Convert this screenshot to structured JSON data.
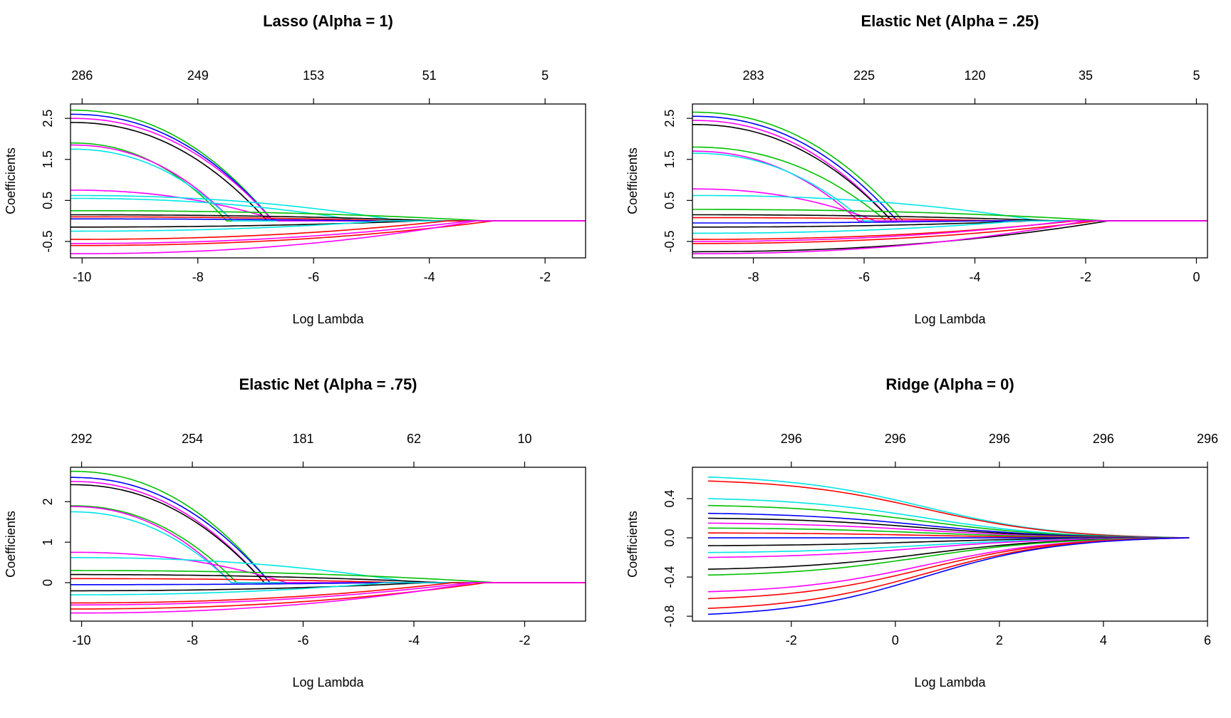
{
  "chart_data": [
    {
      "type": "line",
      "title": "Lasso (Alpha = 1)",
      "xlabel": "Log Lambda",
      "ylabel": "Coefficients",
      "xlim": [
        -10.2,
        -1.3
      ],
      "ylim": [
        -0.9,
        2.85
      ],
      "x_ticks": [
        "-10",
        "-8",
        "-6",
        "-4",
        "-2"
      ],
      "y_ticks": [
        "-0.5",
        "0.5",
        "1.5",
        "2.5"
      ],
      "top_ticks_x": [
        -10,
        -8,
        -6,
        -4,
        -2
      ],
      "top_ticks": [
        "286",
        "249",
        "153",
        "51",
        "5"
      ],
      "grid": false,
      "legend": "none",
      "x_start": -10.2,
      "x_end": -1.3,
      "series": [
        {
          "color": "#00c000",
          "start": 2.7,
          "zero_at": -6.7,
          "exit_x": -6.7,
          "exit_y": 0.6
        },
        {
          "color": "#0000ff",
          "start": 2.6,
          "zero_at": -6.7,
          "exit_x": -6.9,
          "exit_y": 0.5
        },
        {
          "color": "#ff00ff",
          "start": 2.5,
          "zero_at": -6.7,
          "exit_x": -7.0,
          "exit_y": 0.5
        },
        {
          "color": "#000000",
          "start": 2.4,
          "zero_at": -6.8
        },
        {
          "color": "#00c000",
          "start": 1.9,
          "zero_at": -7.5,
          "exit_x": -7.3,
          "exit_y": 0.5
        },
        {
          "color": "#ff00ff",
          "start": 1.85,
          "zero_at": -7.4
        },
        {
          "color": "#00e5e5",
          "start": 1.75,
          "zero_at": -7.4
        },
        {
          "color": "#ff00ff",
          "start": 0.75,
          "zero_at": -6.6
        },
        {
          "color": "#00e5e5",
          "start": 0.62,
          "zero_at": -4.5
        },
        {
          "color": "#00e5e5",
          "start": 0.55,
          "zero_at": -5.2
        },
        {
          "color": "#00c000",
          "start": 0.25,
          "zero_at": -3.0
        },
        {
          "color": "#000000",
          "start": 0.15,
          "zero_at": -3.8
        },
        {
          "color": "#ff0000",
          "start": 0.1,
          "zero_at": -4.5
        },
        {
          "color": "#0000ff",
          "start": 0.05,
          "zero_at": -5.0
        },
        {
          "color": "#000000",
          "start": -0.15,
          "zero_at": -4.2
        },
        {
          "color": "#00e5e5",
          "start": -0.25,
          "zero_at": -4.8
        },
        {
          "color": "#ff0000",
          "start": -0.45,
          "zero_at": -3.7
        },
        {
          "color": "#ff00ff",
          "start": -0.55,
          "zero_at": -3.3
        },
        {
          "color": "#ff0000",
          "start": -0.6,
          "zero_at": -2.9
        },
        {
          "color": "#ff00ff",
          "start": -0.8,
          "zero_at": -3.2
        }
      ]
    },
    {
      "type": "line",
      "title": "Elastic Net (Alpha = .25)",
      "xlabel": "Log Lambda",
      "ylabel": "Coefficients",
      "xlim": [
        -9.1,
        0.2
      ],
      "ylim": [
        -0.9,
        2.85
      ],
      "x_ticks": [
        "-8",
        "-6",
        "-4",
        "-2",
        "0"
      ],
      "y_ticks": [
        "-0.5",
        "0.5",
        "1.5",
        "2.5"
      ],
      "top_ticks_x": [
        -8,
        -6,
        -4,
        -2,
        0
      ],
      "top_ticks": [
        "283",
        "225",
        "120",
        "35",
        "5"
      ],
      "grid": false,
      "legend": "none",
      "x_start": -9.1,
      "x_end": 0.2,
      "series": [
        {
          "color": "#00c000",
          "start": 2.65,
          "zero_at": -5.3
        },
        {
          "color": "#0000ff",
          "start": 2.55,
          "zero_at": -5.4
        },
        {
          "color": "#ff00ff",
          "start": 2.45,
          "zero_at": -5.5
        },
        {
          "color": "#000000",
          "start": 2.35,
          "zero_at": -5.5
        },
        {
          "color": "#00c000",
          "start": 1.8,
          "zero_at": -5.6
        },
        {
          "color": "#ff00ff",
          "start": 1.7,
          "zero_at": -6.1
        },
        {
          "color": "#00e5e5",
          "start": 1.65,
          "zero_at": -6.0
        },
        {
          "color": "#ff00ff",
          "start": 0.78,
          "zero_at": -5.8
        },
        {
          "color": "#00e5e5",
          "start": 0.62,
          "zero_at": -2.8
        },
        {
          "color": "#00c000",
          "start": 0.28,
          "zero_at": -1.6
        },
        {
          "color": "#000000",
          "start": 0.15,
          "zero_at": -2.5
        },
        {
          "color": "#ff0000",
          "start": 0.08,
          "zero_at": -3.5
        },
        {
          "color": "#0000ff",
          "start": -0.05,
          "zero_at": -4.0
        },
        {
          "color": "#000000",
          "start": -0.15,
          "zero_at": -3.0
        },
        {
          "color": "#00e5e5",
          "start": -0.3,
          "zero_at": -3.2
        },
        {
          "color": "#ff0000",
          "start": -0.45,
          "zero_at": -2.2
        },
        {
          "color": "#ff00ff",
          "start": -0.5,
          "zero_at": -2.3
        },
        {
          "color": "#ff0000",
          "start": -0.55,
          "zero_at": -1.8
        },
        {
          "color": "#000000",
          "start": -0.75,
          "zero_at": -1.6
        },
        {
          "color": "#ff00ff",
          "start": -0.8,
          "zero_at": -2.0
        }
      ]
    },
    {
      "type": "line",
      "title": "Elastic Net (Alpha = .75)",
      "xlabel": "Log Lambda",
      "ylabel": "Coefficients",
      "xlim": [
        -10.2,
        -0.9
      ],
      "ylim": [
        -0.95,
        2.85
      ],
      "x_ticks": [
        "-10",
        "-8",
        "-6",
        "-4",
        "-2"
      ],
      "y_ticks": [
        "0",
        "1",
        "2"
      ],
      "top_ticks_x": [
        -10,
        -8,
        -6,
        -4,
        -2
      ],
      "top_ticks": [
        "292",
        "254",
        "181",
        "62",
        "10"
      ],
      "grid": false,
      "legend": "none",
      "x_start": -10.2,
      "x_end": -0.9,
      "series": [
        {
          "color": "#00c000",
          "start": 2.75,
          "zero_at": -6.6
        },
        {
          "color": "#0000ff",
          "start": 2.6,
          "zero_at": -6.6
        },
        {
          "color": "#ff00ff",
          "start": 2.5,
          "zero_at": -6.7
        },
        {
          "color": "#000000",
          "start": 2.42,
          "zero_at": -6.7
        },
        {
          "color": "#00c000",
          "start": 1.9,
          "zero_at": -7.2
        },
        {
          "color": "#ff00ff",
          "start": 1.88,
          "zero_at": -7.3
        },
        {
          "color": "#00e5e5",
          "start": 1.75,
          "zero_at": -7.3
        },
        {
          "color": "#ff00ff",
          "start": 0.75,
          "zero_at": -6.3
        },
        {
          "color": "#00e5e5",
          "start": 0.62,
          "zero_at": -4.0
        },
        {
          "color": "#00c000",
          "start": 0.3,
          "zero_at": -2.5
        },
        {
          "color": "#000000",
          "start": 0.2,
          "zero_at": -3.5
        },
        {
          "color": "#ff0000",
          "start": 0.1,
          "zero_at": -4.2
        },
        {
          "color": "#0000ff",
          "start": -0.05,
          "zero_at": -4.6
        },
        {
          "color": "#000000",
          "start": -0.2,
          "zero_at": -3.8
        },
        {
          "color": "#00e5e5",
          "start": -0.3,
          "zero_at": -4.5
        },
        {
          "color": "#ff0000",
          "start": -0.5,
          "zero_at": -3.3
        },
        {
          "color": "#ff00ff",
          "start": -0.55,
          "zero_at": -3.0
        },
        {
          "color": "#ff0000",
          "start": -0.65,
          "zero_at": -2.7
        },
        {
          "color": "#ff00ff",
          "start": -0.75,
          "zero_at": -2.9
        }
      ]
    },
    {
      "type": "line",
      "title": "Ridge (Alpha = 0)",
      "xlabel": "Log Lambda",
      "ylabel": "Coefficients",
      "xlim": [
        -3.9,
        6.0
      ],
      "ylim": [
        -0.85,
        0.72
      ],
      "x_ticks": [
        "-2",
        "0",
        "2",
        "4",
        "6"
      ],
      "y_ticks": [
        "-0.8",
        "-0.4",
        "0.0",
        "0.4"
      ],
      "top_ticks_x": [
        -2,
        0,
        2,
        4,
        6
      ],
      "top_ticks": [
        "296",
        "296",
        "296",
        "296",
        "296"
      ],
      "grid": false,
      "legend": "none",
      "x_start": -3.6,
      "x_end": 5.65,
      "series": [
        {
          "color": "#00e5e5",
          "start": 0.62
        },
        {
          "color": "#ff0000",
          "start": 0.58
        },
        {
          "color": "#00e5e5",
          "start": 0.4
        },
        {
          "color": "#00c000",
          "start": 0.33
        },
        {
          "color": "#0000ff",
          "start": 0.25
        },
        {
          "color": "#000000",
          "start": 0.2
        },
        {
          "color": "#ff00ff",
          "start": 0.15
        },
        {
          "color": "#00c000",
          "start": 0.1
        },
        {
          "color": "#ff0000",
          "start": 0.05
        },
        {
          "color": "#0000ff",
          "start": 0.0
        },
        {
          "color": "#000000",
          "start": -0.08
        },
        {
          "color": "#00e5e5",
          "start": -0.15
        },
        {
          "color": "#ff00ff",
          "start": -0.2
        },
        {
          "color": "#000000",
          "start": -0.32
        },
        {
          "color": "#00c000",
          "start": -0.38
        },
        {
          "color": "#ff00ff",
          "start": -0.55
        },
        {
          "color": "#ff0000",
          "start": -0.62
        },
        {
          "color": "#ff0000",
          "start": -0.72
        },
        {
          "color": "#0000ff",
          "start": -0.78
        }
      ]
    }
  ]
}
